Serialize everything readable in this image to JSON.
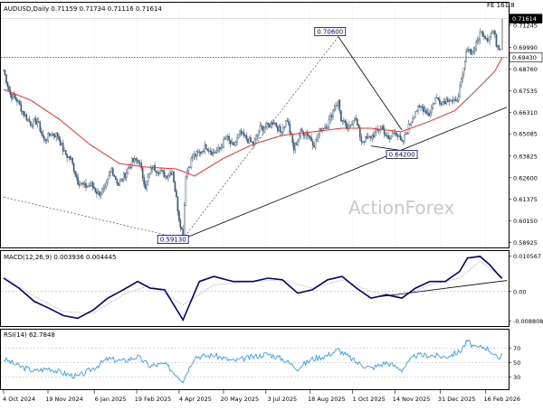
{
  "chart_data": [
    {
      "type": "candlestick",
      "title": "AUDUSD,Daily  0.71159 0.71734 0.71116 0.71614",
      "symbol": "AUDUSD,Daily",
      "ohlc_readout": "0.71159 0.71734 0.71116 0.71614",
      "watermark": "ActionForex",
      "corner_label": "FE 161.8",
      "y_ticks": [
        "0.71245",
        "0.69990",
        "0.68760",
        "0.67535",
        "0.66310",
        "0.65085",
        "0.63825",
        "0.62600",
        "0.61375",
        "0.60150",
        "0.58925"
      ],
      "ylim": [
        0.588,
        0.718
      ],
      "x_ticks": [
        "4 Oct 2024",
        "19 Nov 2024",
        "6 Jan 2025",
        "19 Feb 2025",
        "4 Apr 2025",
        "20 May 2025",
        "3 Jul 2025",
        "18 Aug 2025",
        "1 Oct 2025",
        "14 Nov 2025",
        "31 Dec 2025",
        "16 Feb 2026"
      ],
      "price_tags": {
        "last": "0.71614",
        "level": "0.69430"
      },
      "annotations": [
        {
          "label": "0.70600",
          "date": "2025-09-16",
          "value": 0.706
        },
        {
          "label": "0.64200",
          "date": "2025-11-21",
          "value": 0.642
        },
        {
          "label": "0.59130",
          "date": "2025-04-08",
          "value": 0.5913
        }
      ],
      "horizontal_level": 0.6943,
      "series": [
        {
          "name": "Price",
          "type": "candlestick"
        },
        {
          "name": "",
          "type": "line",
          "color": "#ff0000"
        }
      ],
      "price_path": [
        [
          "2024-10-04",
          0.687
        ],
        [
          "2024-10-11",
          0.673
        ],
        [
          "2024-10-18",
          0.67
        ],
        [
          "2024-10-25",
          0.662
        ],
        [
          "2024-11-01",
          0.657
        ],
        [
          "2024-11-08",
          0.658
        ],
        [
          "2024-11-15",
          0.647
        ],
        [
          "2024-11-22",
          0.651
        ],
        [
          "2024-11-29",
          0.65
        ],
        [
          "2024-12-06",
          0.64
        ],
        [
          "2024-12-13",
          0.636
        ],
        [
          "2024-12-20",
          0.624
        ],
        [
          "2024-12-27",
          0.621
        ],
        [
          "2025-01-03",
          0.622
        ],
        [
          "2025-01-10",
          0.617
        ],
        [
          "2025-01-17",
          0.619
        ],
        [
          "2025-01-24",
          0.631
        ],
        [
          "2025-01-31",
          0.622
        ],
        [
          "2025-02-07",
          0.628
        ],
        [
          "2025-02-14",
          0.635
        ],
        [
          "2025-02-21",
          0.636
        ],
        [
          "2025-02-28",
          0.621
        ],
        [
          "2025-03-07",
          0.632
        ],
        [
          "2025-03-14",
          0.63
        ],
        [
          "2025-03-21",
          0.627
        ],
        [
          "2025-03-28",
          0.63
        ],
        [
          "2025-04-04",
          0.603
        ],
        [
          "2025-04-08",
          0.593
        ],
        [
          "2025-04-11",
          0.628
        ],
        [
          "2025-04-18",
          0.638
        ],
        [
          "2025-04-25",
          0.64
        ],
        [
          "2025-05-02",
          0.644
        ],
        [
          "2025-05-09",
          0.64
        ],
        [
          "2025-05-16",
          0.642
        ],
        [
          "2025-05-23",
          0.649
        ],
        [
          "2025-05-30",
          0.643
        ],
        [
          "2025-06-06",
          0.651
        ],
        [
          "2025-06-13",
          0.648
        ],
        [
          "2025-06-20",
          0.645
        ],
        [
          "2025-06-27",
          0.654
        ],
        [
          "2025-07-04",
          0.655
        ],
        [
          "2025-07-11",
          0.658
        ],
        [
          "2025-07-18",
          0.652
        ],
        [
          "2025-07-25",
          0.659
        ],
        [
          "2025-08-01",
          0.642
        ],
        [
          "2025-08-08",
          0.652
        ],
        [
          "2025-08-15",
          0.651
        ],
        [
          "2025-08-22",
          0.645
        ],
        [
          "2025-08-29",
          0.654
        ],
        [
          "2025-09-05",
          0.656
        ],
        [
          "2025-09-12",
          0.666
        ],
        [
          "2025-09-16",
          0.669
        ],
        [
          "2025-09-19",
          0.659
        ],
        [
          "2025-09-26",
          0.653
        ],
        [
          "2025-10-03",
          0.661
        ],
        [
          "2025-10-10",
          0.647
        ],
        [
          "2025-10-17",
          0.648
        ],
        [
          "2025-10-24",
          0.651
        ],
        [
          "2025-10-31",
          0.655
        ],
        [
          "2025-11-07",
          0.647
        ],
        [
          "2025-11-14",
          0.653
        ],
        [
          "2025-11-21",
          0.645
        ],
        [
          "2025-11-28",
          0.655
        ],
        [
          "2025-12-05",
          0.664
        ],
        [
          "2025-12-12",
          0.666
        ],
        [
          "2025-12-19",
          0.662
        ],
        [
          "2025-12-26",
          0.671
        ],
        [
          "2026-01-02",
          0.669
        ],
        [
          "2026-01-09",
          0.671
        ],
        [
          "2026-01-16",
          0.668
        ],
        [
          "2026-01-23",
          0.683
        ],
        [
          "2026-01-28",
          0.7
        ],
        [
          "2026-02-02",
          0.697
        ],
        [
          "2026-02-06",
          0.701
        ],
        [
          "2026-02-10",
          0.708
        ],
        [
          "2026-02-13",
          0.708
        ],
        [
          "2026-02-18",
          0.705
        ],
        [
          "2026-02-20",
          0.707
        ],
        [
          "2026-02-24",
          0.709
        ],
        [
          "2026-02-27",
          0.702
        ],
        [
          "2026-03-03",
          0.7
        ],
        [
          "2026-03-05",
          0.7161
        ]
      ],
      "ma_path": [
        [
          "2024-10-04",
          0.676
        ],
        [
          "2024-11-01",
          0.67
        ],
        [
          "2024-12-01",
          0.659
        ],
        [
          "2025-01-01",
          0.645
        ],
        [
          "2025-02-01",
          0.634
        ],
        [
          "2025-03-01",
          0.632
        ],
        [
          "2025-04-01",
          0.631
        ],
        [
          "2025-04-20",
          0.627
        ],
        [
          "2025-05-20",
          0.637
        ],
        [
          "2025-06-20",
          0.645
        ],
        [
          "2025-07-20",
          0.65
        ],
        [
          "2025-08-20",
          0.652
        ],
        [
          "2025-09-20",
          0.654
        ],
        [
          "2025-10-20",
          0.654
        ],
        [
          "2025-11-20",
          0.652
        ],
        [
          "2025-12-20",
          0.658
        ],
        [
          "2026-01-15",
          0.664
        ],
        [
          "2026-02-05",
          0.675
        ],
        [
          "2026-02-25",
          0.686
        ],
        [
          "2026-03-05",
          0.694
        ]
      ],
      "trendlines": [
        {
          "from": [
            "2024-10-04",
            0.615
          ],
          "to": [
            "2025-04-08",
            0.5913
          ]
        },
        {
          "from": [
            "2025-04-08",
            0.5913
          ],
          "to": [
            "2025-09-16",
            0.706
          ]
        },
        {
          "from": [
            "2025-04-08",
            0.5913
          ],
          "to": [
            "2026-03-10",
            0.666
          ]
        },
        {
          "from": [
            "2025-09-16",
            0.706
          ],
          "to": [
            "2025-11-21",
            0.653
          ]
        },
        {
          "from": [
            "2025-10-20",
            0.644
          ],
          "to": [
            "2025-11-25",
            0.641
          ]
        }
      ]
    },
    {
      "type": "line",
      "title": "MACD(12,26,9) 0.003936 0.004445",
      "indicator_label": "MACD(12,26,9) 0.003936 0.004445",
      "y_ticks": [
        "0.010567",
        "0.00",
        "-0.008808"
      ],
      "ylim": [
        -0.0095,
        0.011
      ],
      "zero_line": 0,
      "series": [
        {
          "name": "",
          "color": "#000080",
          "values": [
            [
              "2024-10-04",
              0.004
            ],
            [
              "2024-10-20",
              0.001
            ],
            [
              "2024-11-05",
              -0.003
            ],
            [
              "2024-11-20",
              -0.005
            ],
            [
              "2024-12-05",
              -0.0072
            ],
            [
              "2024-12-20",
              -0.008
            ],
            [
              "2025-01-05",
              -0.0055
            ],
            [
              "2025-01-20",
              -0.002
            ],
            [
              "2025-02-05",
              0.0005
            ],
            [
              "2025-02-20",
              0.003
            ],
            [
              "2025-03-05",
              0.001
            ],
            [
              "2025-03-20",
              0.0005
            ],
            [
              "2025-04-08",
              -0.0085
            ],
            [
              "2025-04-25",
              0.003
            ],
            [
              "2025-05-10",
              0.0045
            ],
            [
              "2025-05-30",
              0.003
            ],
            [
              "2025-06-20",
              0.003
            ],
            [
              "2025-07-05",
              0.004
            ],
            [
              "2025-07-20",
              0.0035
            ],
            [
              "2025-08-05",
              -0.0005
            ],
            [
              "2025-08-20",
              0.0005
            ],
            [
              "2025-09-05",
              0.0035
            ],
            [
              "2025-09-20",
              0.0045
            ],
            [
              "2025-10-05",
              0.001
            ],
            [
              "2025-10-20",
              -0.002
            ],
            [
              "2025-11-05",
              -0.001
            ],
            [
              "2025-11-21",
              -0.002
            ],
            [
              "2025-12-05",
              0.001
            ],
            [
              "2025-12-20",
              0.003
            ],
            [
              "2026-01-05",
              0.003
            ],
            [
              "2026-01-20",
              0.006
            ],
            [
              "2026-01-28",
              0.01
            ],
            [
              "2026-02-10",
              0.0105
            ],
            [
              "2026-02-20",
              0.008
            ],
            [
              "2026-03-01",
              0.005
            ],
            [
              "2026-03-05",
              0.0039
            ]
          ]
        },
        {
          "name": "",
          "color": "#c0c0c0",
          "values": [
            [
              "2024-10-04",
              0.0045
            ],
            [
              "2024-11-05",
              -0.0015
            ],
            [
              "2024-12-05",
              -0.006
            ],
            [
              "2025-01-05",
              -0.0065
            ],
            [
              "2025-02-05",
              -0.001
            ],
            [
              "2025-03-05",
              0.002
            ],
            [
              "2025-04-08",
              -0.004
            ],
            [
              "2025-05-10",
              0.002
            ],
            [
              "2025-06-20",
              0.003
            ],
            [
              "2025-07-20",
              0.0035
            ],
            [
              "2025-08-20",
              0.001
            ],
            [
              "2025-09-20",
              0.0035
            ],
            [
              "2025-10-20",
              0.0
            ],
            [
              "2025-11-21",
              -0.0015
            ],
            [
              "2025-12-20",
              0.002
            ],
            [
              "2026-01-20",
              0.004
            ],
            [
              "2026-02-10",
              0.009
            ],
            [
              "2026-03-05",
              0.0044
            ]
          ]
        }
      ],
      "trendline": {
        "from": [
          "2025-10-30",
          -0.0015
        ],
        "to": [
          "2026-03-10",
          0.0033
        ]
      }
    },
    {
      "type": "line",
      "title": "RSI(14) 62.7848",
      "indicator_label": "RSI(14) 62.7848",
      "y_ticks": [
        "70",
        "50",
        "30"
      ],
      "ylim": [
        14,
        92
      ],
      "levels": [
        70,
        50,
        30
      ],
      "series": [
        {
          "name": "",
          "color": "#1e90ff",
          "values": [
            [
              "2024-10-04",
              55
            ],
            [
              "2024-10-20",
              45
            ],
            [
              "2024-11-05",
              38
            ],
            [
              "2024-11-20",
              42
            ],
            [
              "2024-12-05",
              35
            ],
            [
              "2024-12-20",
              30
            ],
            [
              "2025-01-05",
              42
            ],
            [
              "2025-01-20",
              55
            ],
            [
              "2025-02-05",
              52
            ],
            [
              "2025-02-20",
              58
            ],
            [
              "2025-03-05",
              45
            ],
            [
              "2025-03-20",
              48
            ],
            [
              "2025-04-08",
              25
            ],
            [
              "2025-04-20",
              58
            ],
            [
              "2025-05-10",
              60
            ],
            [
              "2025-05-30",
              52
            ],
            [
              "2025-06-20",
              58
            ],
            [
              "2025-07-05",
              62
            ],
            [
              "2025-07-20",
              55
            ],
            [
              "2025-08-05",
              42
            ],
            [
              "2025-08-20",
              55
            ],
            [
              "2025-09-05",
              60
            ],
            [
              "2025-09-16",
              68
            ],
            [
              "2025-10-05",
              50
            ],
            [
              "2025-10-20",
              42
            ],
            [
              "2025-11-05",
              50
            ],
            [
              "2025-11-21",
              40
            ],
            [
              "2025-12-05",
              60
            ],
            [
              "2025-12-20",
              60
            ],
            [
              "2026-01-05",
              58
            ],
            [
              "2026-01-20",
              65
            ],
            [
              "2026-01-28",
              80
            ],
            [
              "2026-02-05",
              70
            ],
            [
              "2026-02-15",
              72
            ],
            [
              "2026-02-25",
              62
            ],
            [
              "2026-03-01",
              52
            ],
            [
              "2026-03-05",
              62.78
            ]
          ]
        }
      ]
    }
  ]
}
